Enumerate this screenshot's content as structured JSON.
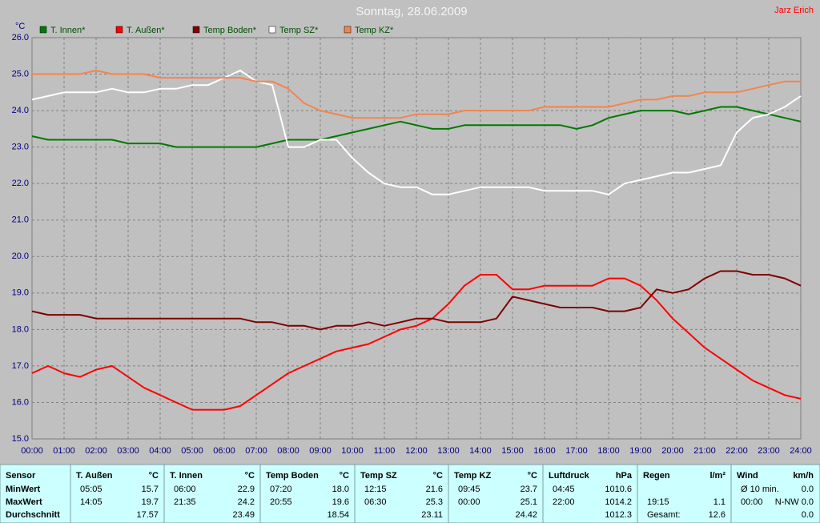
{
  "chart_data": {
    "type": "line",
    "title": "Sonntag, 28.06.2009",
    "annotation": "Jarz Erich",
    "y_label": "°C",
    "x": [
      0,
      0.5,
      1,
      1.5,
      2,
      2.5,
      3,
      3.5,
      4,
      4.5,
      5,
      5.5,
      6,
      6.5,
      7,
      7.5,
      8,
      8.5,
      9,
      9.5,
      10,
      10.5,
      11,
      11.5,
      12,
      12.5,
      13,
      13.5,
      14,
      14.5,
      15,
      15.5,
      16,
      16.5,
      17,
      17.5,
      18,
      18.5,
      19,
      19.5,
      20,
      20.5,
      21,
      21.5,
      22,
      22.5,
      23,
      23.5,
      24
    ],
    "xlim": [
      0,
      24
    ],
    "xticks": [
      {
        "value": 0,
        "label": "00:00"
      },
      {
        "value": 1,
        "label": "01:00"
      },
      {
        "value": 2,
        "label": "02:00"
      },
      {
        "value": 3,
        "label": "03:00"
      },
      {
        "value": 4,
        "label": "04:00"
      },
      {
        "value": 5,
        "label": "05:00"
      },
      {
        "value": 6,
        "label": "06:00"
      },
      {
        "value": 7,
        "label": "07:00"
      },
      {
        "value": 8,
        "label": "08:00"
      },
      {
        "value": 9,
        "label": "09:00"
      },
      {
        "value": 10,
        "label": "10:00"
      },
      {
        "value": 11,
        "label": "11:00"
      },
      {
        "value": 12,
        "label": "12:00"
      },
      {
        "value": 13,
        "label": "13:00"
      },
      {
        "value": 14,
        "label": "14:00"
      },
      {
        "value": 15,
        "label": "15:00"
      },
      {
        "value": 16,
        "label": "16:00"
      },
      {
        "value": 17,
        "label": "17:00"
      },
      {
        "value": 18,
        "label": "18:00"
      },
      {
        "value": 19,
        "label": "19:00"
      },
      {
        "value": 20,
        "label": "20:00"
      },
      {
        "value": 21,
        "label": "21:00"
      },
      {
        "value": 22,
        "label": "22:00"
      },
      {
        "value": 23,
        "label": "23:00"
      },
      {
        "value": 24,
        "label": "24:00"
      }
    ],
    "ylim": [
      15,
      26
    ],
    "yticks": [
      {
        "value": 15,
        "label": "15.0"
      },
      {
        "value": 16,
        "label": "16.0"
      },
      {
        "value": 17,
        "label": "17.0"
      },
      {
        "value": 18,
        "label": "18.0"
      },
      {
        "value": 19,
        "label": "19.0"
      },
      {
        "value": 20,
        "label": "20.0"
      },
      {
        "value": 21,
        "label": "21.0"
      },
      {
        "value": 22,
        "label": "22.0"
      },
      {
        "value": 23,
        "label": "23.0"
      },
      {
        "value": 24,
        "label": "24.0"
      },
      {
        "value": 25,
        "label": "25.0"
      },
      {
        "value": 26,
        "label": "26.0"
      }
    ],
    "grid": true,
    "series": [
      {
        "name": "T. Innen*",
        "color": "#007a00",
        "values": [
          23.3,
          23.2,
          23.2,
          23.2,
          23.2,
          23.2,
          23.1,
          23.1,
          23.1,
          23.0,
          23.0,
          23.0,
          23.0,
          23.0,
          23.0,
          23.1,
          23.2,
          23.2,
          23.2,
          23.3,
          23.4,
          23.5,
          23.6,
          23.7,
          23.6,
          23.5,
          23.5,
          23.6,
          23.6,
          23.6,
          23.6,
          23.6,
          23.6,
          23.6,
          23.5,
          23.6,
          23.8,
          23.9,
          24.0,
          24.0,
          24.0,
          23.9,
          24.0,
          24.1,
          24.1,
          24.0,
          23.9,
          23.8,
          23.7
        ]
      },
      {
        "name": "T. Außen*",
        "color": "#ff0000",
        "values": [
          16.8,
          17.0,
          16.8,
          16.7,
          16.9,
          17.0,
          16.7,
          16.4,
          16.2,
          16.0,
          15.8,
          15.8,
          15.8,
          15.9,
          16.2,
          16.5,
          16.8,
          17.0,
          17.2,
          17.4,
          17.5,
          17.6,
          17.8,
          18.0,
          18.1,
          18.3,
          18.7,
          19.2,
          19.5,
          19.5,
          19.1,
          19.1,
          19.2,
          19.2,
          19.2,
          19.2,
          19.4,
          19.4,
          19.2,
          18.8,
          18.3,
          17.9,
          17.5,
          17.2,
          16.9,
          16.6,
          16.4,
          16.2,
          16.1
        ]
      },
      {
        "name": "Temp Boden*",
        "color": "#800000",
        "values": [
          18.5,
          18.4,
          18.4,
          18.4,
          18.3,
          18.3,
          18.3,
          18.3,
          18.3,
          18.3,
          18.3,
          18.3,
          18.3,
          18.3,
          18.2,
          18.2,
          18.1,
          18.1,
          18.0,
          18.1,
          18.1,
          18.2,
          18.1,
          18.2,
          18.3,
          18.3,
          18.2,
          18.2,
          18.2,
          18.3,
          18.9,
          18.8,
          18.7,
          18.6,
          18.6,
          18.6,
          18.5,
          18.5,
          18.6,
          19.1,
          19.0,
          19.1,
          19.4,
          19.6,
          19.6,
          19.5,
          19.5,
          19.4,
          19.2
        ]
      },
      {
        "name": "Temp SZ*",
        "color": "#ffffff",
        "values": [
          24.3,
          24.4,
          24.5,
          24.5,
          24.5,
          24.6,
          24.5,
          24.5,
          24.6,
          24.6,
          24.7,
          24.7,
          24.9,
          25.1,
          24.8,
          24.7,
          23.0,
          23.0,
          23.2,
          23.2,
          22.7,
          22.3,
          22.0,
          21.9,
          21.9,
          21.7,
          21.7,
          21.8,
          21.9,
          21.9,
          21.9,
          21.9,
          21.8,
          21.8,
          21.8,
          21.8,
          21.7,
          22.0,
          22.1,
          22.2,
          22.3,
          22.3,
          22.4,
          22.5,
          23.4,
          23.8,
          23.9,
          24.1,
          24.4
        ]
      },
      {
        "name": "Temp KZ*",
        "color": "#f5844c",
        "values": [
          25.0,
          25.0,
          25.0,
          25.0,
          25.1,
          25.0,
          25.0,
          25.0,
          24.9,
          24.9,
          24.9,
          24.9,
          24.9,
          24.9,
          24.8,
          24.8,
          24.6,
          24.2,
          24.0,
          23.9,
          23.8,
          23.8,
          23.8,
          23.8,
          23.9,
          23.9,
          23.9,
          24.0,
          24.0,
          24.0,
          24.0,
          24.0,
          24.1,
          24.1,
          24.1,
          24.1,
          24.1,
          24.2,
          24.3,
          24.3,
          24.4,
          24.4,
          24.5,
          24.5,
          24.5,
          24.6,
          24.7,
          24.8,
          24.8
        ]
      }
    ]
  },
  "table": {
    "header": "Sensor",
    "row_labels": [
      "MinWert",
      "MaxWert",
      "Durchschnitt"
    ],
    "columns": [
      {
        "name": "T. Außen",
        "unit": "°C",
        "rows": [
          [
            "05:05",
            "15.7"
          ],
          [
            "14:05",
            "19.7"
          ],
          [
            "17.57"
          ]
        ]
      },
      {
        "name": "T. Innen",
        "unit": "°C",
        "rows": [
          [
            "06:00",
            "22.9"
          ],
          [
            "21:35",
            "24.2"
          ],
          [
            "23.49"
          ]
        ]
      },
      {
        "name": "Temp Boden",
        "unit": "°C",
        "rows": [
          [
            "07:20",
            "18.0"
          ],
          [
            "20:55",
            "19.6"
          ],
          [
            "18.54"
          ]
        ]
      },
      {
        "name": "Temp SZ",
        "unit": "°C",
        "rows": [
          [
            "12:15",
            "21.6"
          ],
          [
            "06:30",
            "25.3"
          ],
          [
            "23.11"
          ]
        ]
      },
      {
        "name": "Temp KZ",
        "unit": "°C",
        "rows": [
          [
            "09:45",
            "23.7"
          ],
          [
            "00:00",
            "25.1"
          ],
          [
            "24.42"
          ]
        ]
      },
      {
        "name": "Luftdruck",
        "unit": "hPa",
        "rows": [
          [
            "04:45",
            "1010.6"
          ],
          [
            "22:00",
            "1014.2"
          ],
          [
            "1012.3"
          ]
        ]
      },
      {
        "name": "Regen",
        "unit": "l/m²",
        "rows": [
          [],
          [
            "19:15",
            "1.1"
          ],
          [
            "Gesamt:",
            "12.6"
          ]
        ]
      },
      {
        "name": "Wind",
        "unit": "km/h",
        "rows": [
          [
            "Ø 10 min.",
            "0.0"
          ],
          [
            "00:00",
            "N-NW 0.0"
          ],
          [
            "0.0"
          ]
        ]
      }
    ]
  }
}
